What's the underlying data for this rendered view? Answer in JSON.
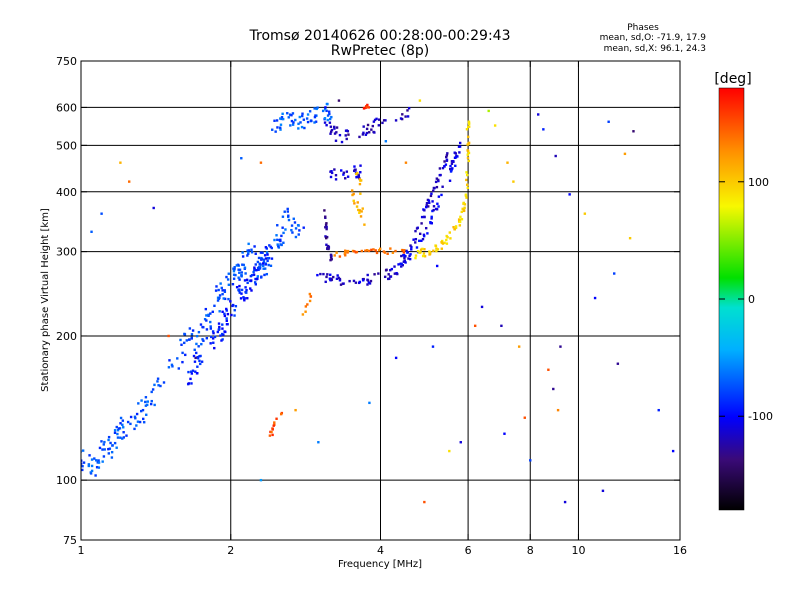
{
  "chart_data": {
    "type": "scatter",
    "title": "Tromsø 20140626 00:28:00-00:29:43",
    "subtitle": "RwPretec (8p)",
    "xlabel": "Frequency [MHz]",
    "ylabel": "Stationary phase Virtual Height [km]",
    "x_scale": "log",
    "y_scale": "log",
    "xlim": [
      1,
      16
    ],
    "ylim": [
      75,
      750
    ],
    "x_ticks": [
      {
        "value": 1,
        "label": "1"
      },
      {
        "value": 2,
        "label": "2"
      },
      {
        "value": 4,
        "label": "4"
      },
      {
        "value": 6,
        "label": "6"
      },
      {
        "value": 8,
        "label": "8"
      },
      {
        "value": 10,
        "label": "10"
      },
      {
        "value": 16,
        "label": "16"
      }
    ],
    "x_grid": [
      2,
      4,
      6,
      8,
      10
    ],
    "y_ticks": [
      {
        "value": 75,
        "label": "75"
      },
      {
        "value": 100,
        "label": "100"
      },
      {
        "value": 200,
        "label": "200"
      },
      {
        "value": 300,
        "label": "300"
      },
      {
        "value": 400,
        "label": "400"
      },
      {
        "value": 500,
        "label": "500"
      },
      {
        "value": 600,
        "label": "600"
      },
      {
        "value": 750,
        "label": "750"
      }
    ],
    "y_grid": [
      100,
      200,
      300,
      400,
      500,
      600
    ],
    "grid": true,
    "stats": {
      "heading": "Phases",
      "line_o": "mean, sd,O: -71.9, 17.9",
      "line_x": "mean, sd,X: 96.1, 24.3"
    },
    "colorbar": {
      "label": "[deg]",
      "min": -180,
      "max": 180,
      "ticks": [
        {
          "value": 100,
          "label": "100"
        },
        {
          "value": 0,
          "label": "0"
        },
        {
          "value": -100,
          "label": "-100"
        }
      ]
    },
    "traces": [
      {
        "phase": -75,
        "points": [
          [
            1.0,
            110
          ],
          [
            1.05,
            108
          ],
          [
            1.1,
            112
          ],
          [
            1.15,
            118
          ],
          [
            1.2,
            125
          ],
          [
            1.3,
            135
          ],
          [
            1.4,
            150
          ],
          [
            1.5,
            170
          ],
          [
            1.6,
            185
          ],
          [
            1.7,
            200
          ],
          [
            1.8,
            215
          ],
          [
            1.9,
            240
          ],
          [
            2.0,
            260
          ],
          [
            2.1,
            280
          ],
          [
            2.2,
            300
          ],
          [
            2.3,
            275
          ],
          [
            2.4,
            290
          ],
          [
            2.5,
            320
          ],
          [
            2.6,
            360
          ],
          [
            2.8,
            310
          ]
        ],
        "spread": 0.06,
        "count": 260
      },
      {
        "phase": -90,
        "points": [
          [
            1.6,
            160
          ],
          [
            1.7,
            175
          ],
          [
            1.8,
            190
          ],
          [
            1.9,
            205
          ],
          [
            2.0,
            225
          ],
          [
            2.1,
            245
          ],
          [
            2.2,
            255
          ],
          [
            2.3,
            280
          ],
          [
            2.4,
            300
          ]
        ],
        "spread": 0.05,
        "count": 120
      },
      {
        "phase": -70,
        "points": [
          [
            2.4,
            540
          ],
          [
            2.6,
            570
          ],
          [
            2.8,
            560
          ],
          [
            3.0,
            580
          ],
          [
            3.2,
            590
          ]
        ],
        "spread": 0.04,
        "count": 60
      },
      {
        "phase": -120,
        "points": [
          [
            3.1,
            560
          ],
          [
            3.3,
            520
          ],
          [
            3.6,
            530
          ],
          [
            3.9,
            550
          ],
          [
            4.2,
            575
          ],
          [
            4.6,
            590
          ]
        ],
        "spread": 0.03,
        "count": 50
      },
      {
        "phase": -110,
        "points": [
          [
            3.1,
            450
          ],
          [
            3.3,
            430
          ],
          [
            3.5,
            435
          ],
          [
            3.7,
            445
          ]
        ],
        "spread": 0.03,
        "count": 25
      },
      {
        "phase": -115,
        "points": [
          [
            3.0,
            265
          ],
          [
            3.2,
            262
          ],
          [
            3.5,
            260
          ],
          [
            3.8,
            262
          ],
          [
            4.1,
            268
          ],
          [
            4.3,
            275
          ],
          [
            4.5,
            290
          ],
          [
            4.7,
            320
          ],
          [
            4.9,
            360
          ],
          [
            5.1,
            400
          ],
          [
            5.3,
            440
          ],
          [
            5.5,
            480
          ]
        ],
        "spread": 0.025,
        "count": 110
      },
      {
        "phase": -105,
        "points": [
          [
            4.4,
            285
          ],
          [
            4.6,
            295
          ],
          [
            4.8,
            310
          ],
          [
            5.0,
            340
          ],
          [
            5.2,
            370
          ],
          [
            5.4,
            410
          ],
          [
            5.6,
            460
          ],
          [
            5.8,
            520
          ]
        ],
        "spread": 0.03,
        "count": 60
      },
      {
        "phase": -130,
        "points": [
          [
            3.1,
            360
          ],
          [
            3.1,
            330
          ],
          [
            3.15,
            300
          ],
          [
            3.2,
            285
          ]
        ],
        "spread": 0.02,
        "count": 25
      },
      {
        "phase": 140,
        "points": [
          [
            3.2,
            295
          ],
          [
            3.5,
            300
          ],
          [
            3.9,
            302
          ],
          [
            4.2,
            300
          ],
          [
            4.5,
            298
          ]
        ],
        "spread": 0.015,
        "count": 35
      },
      {
        "phase": 95,
        "points": [
          [
            4.6,
            295
          ],
          [
            5.0,
            300
          ],
          [
            5.3,
            310
          ],
          [
            5.6,
            330
          ],
          [
            5.85,
            360
          ],
          [
            5.95,
            400
          ],
          [
            6.0,
            460
          ],
          [
            6.0,
            520
          ],
          [
            6.0,
            580
          ]
        ],
        "spread": 0.02,
        "count": 80
      },
      {
        "phase": 110,
        "points": [
          [
            3.5,
            400
          ],
          [
            3.6,
            370
          ],
          [
            3.7,
            340
          ],
          [
            3.65,
            420
          ],
          [
            3.55,
            450
          ]
        ],
        "spread": 0.02,
        "count": 20
      },
      {
        "phase": 150,
        "points": [
          [
            2.5,
            135
          ],
          [
            2.45,
            128
          ],
          [
            2.4,
            125
          ],
          [
            2.55,
            140
          ]
        ],
        "spread": 0.02,
        "count": 12
      },
      {
        "phase": 130,
        "points": [
          [
            2.8,
            225
          ],
          [
            2.85,
            235
          ],
          [
            2.9,
            240
          ]
        ],
        "spread": 0.02,
        "count": 8
      },
      {
        "phase": 160,
        "points": [
          [
            3.7,
            600
          ],
          [
            3.8,
            605
          ]
        ],
        "spread": 0.01,
        "count": 8
      }
    ],
    "scatter_points": [
      [
        1.05,
        330,
        -70
      ],
      [
        1.1,
        360,
        -75
      ],
      [
        1.2,
        460,
        110
      ],
      [
        1.25,
        420,
        140
      ],
      [
        1.4,
        370,
        -110
      ],
      [
        1.5,
        200,
        150
      ],
      [
        1.7,
        180,
        -130
      ],
      [
        2.1,
        470,
        -70
      ],
      [
        2.3,
        460,
        140
      ],
      [
        2.7,
        140,
        120
      ],
      [
        3.0,
        120,
        -60
      ],
      [
        3.1,
        600,
        -100
      ],
      [
        3.3,
        620,
        -140
      ],
      [
        3.6,
        380,
        120
      ],
      [
        4.1,
        510,
        -60
      ],
      [
        4.3,
        180,
        -100
      ],
      [
        4.5,
        460,
        130
      ],
      [
        4.8,
        620,
        90
      ],
      [
        5.1,
        190,
        -90
      ],
      [
        5.5,
        115,
        90
      ],
      [
        5.8,
        120,
        -110
      ],
      [
        6.6,
        590,
        60
      ],
      [
        6.8,
        550,
        90
      ],
      [
        7.0,
        210,
        -120
      ],
      [
        7.2,
        460,
        110
      ],
      [
        7.4,
        420,
        100
      ],
      [
        7.6,
        190,
        120
      ],
      [
        7.8,
        135,
        150
      ],
      [
        8.0,
        110,
        -80
      ],
      [
        8.3,
        580,
        -110
      ],
      [
        8.5,
        540,
        -90
      ],
      [
        8.7,
        170,
        150
      ],
      [
        9.0,
        475,
        -120
      ],
      [
        9.2,
        190,
        -130
      ],
      [
        9.4,
        90,
        -110
      ],
      [
        9.6,
        395,
        -100
      ],
      [
        10.3,
        360,
        100
      ],
      [
        10.8,
        240,
        -100
      ],
      [
        11.2,
        95,
        -110
      ],
      [
        11.5,
        560,
        -80
      ],
      [
        11.8,
        270,
        -80
      ],
      [
        12.0,
        175,
        -130
      ],
      [
        12.4,
        480,
        120
      ],
      [
        12.7,
        320,
        100
      ],
      [
        12.9,
        535,
        -140
      ],
      [
        14.5,
        140,
        -90
      ],
      [
        15.5,
        115,
        -100
      ],
      [
        6.2,
        210,
        150
      ],
      [
        6.4,
        230,
        -110
      ],
      [
        5.2,
        280,
        -100
      ],
      [
        8.9,
        155,
        -130
      ],
      [
        9.1,
        140,
        130
      ],
      [
        7.1,
        125,
        -100
      ],
      [
        3.8,
        145,
        -60
      ],
      [
        2.3,
        100,
        -50
      ],
      [
        4.9,
        90,
        150
      ]
    ]
  }
}
